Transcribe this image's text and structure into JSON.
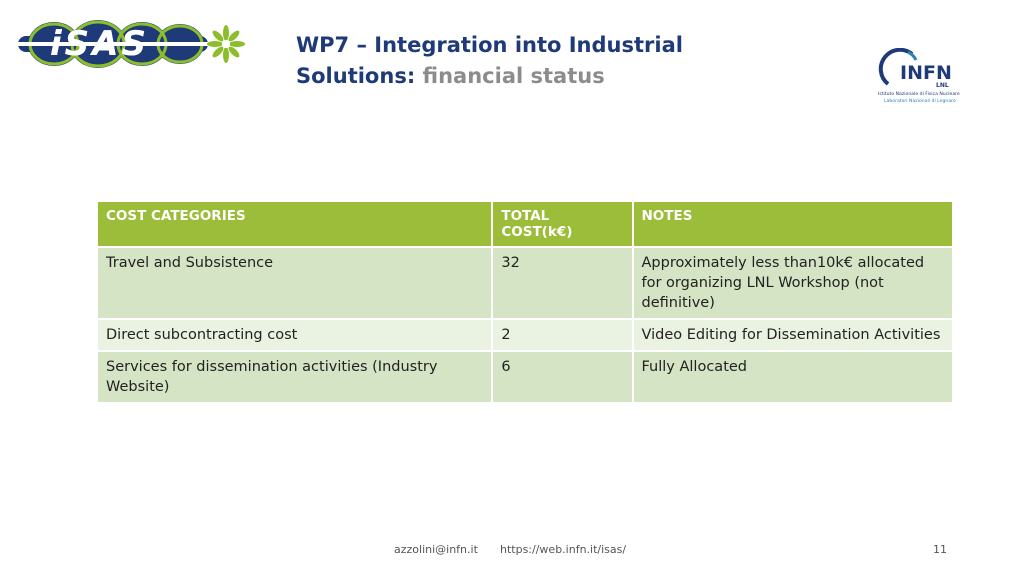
{
  "header": {
    "logo_left_text": "iSAS",
    "title_line1": "WP7 – Integration into Industrial",
    "title_line2_strong": "Solutions:",
    "title_line2_sub": " financial status"
  },
  "infn_logo": {
    "wordmark": "INFN",
    "lab_code": "LNL",
    "line1": "Istituto Nazionale di Fisica Nucleare",
    "line2": "Laboratori Nazionali di Legnaro"
  },
  "table": {
    "headers": [
      "COST CATEGORIES",
      "TOTAL COST(k€)",
      "NOTES"
    ],
    "rows": [
      {
        "category": "Travel and Subsistence",
        "cost": "32",
        "notes": "Approximately less than10k€ allocated for organizing LNL Workshop (not definitive)"
      },
      {
        "category": "Direct subcontracting cost",
        "cost": "2",
        "notes": "Video Editing for Dissemination Activities"
      },
      {
        "category": "Services for dissemination activities (Industry Website)",
        "cost": "6",
        "notes": "Fully Allocated"
      }
    ]
  },
  "footer": {
    "email": "azzolini@infn.it",
    "url": "https://web.infn.it/isas/",
    "page_number": "11"
  },
  "colors": {
    "title": "#1f3a78",
    "subtitle": "#8c8c8c",
    "header_bg": "#9bbd3a",
    "row_dark": "#d5e4c4",
    "row_light": "#eaf2e2",
    "logo_green": "#8cbd2a",
    "logo_blue": "#1f3a78"
  }
}
